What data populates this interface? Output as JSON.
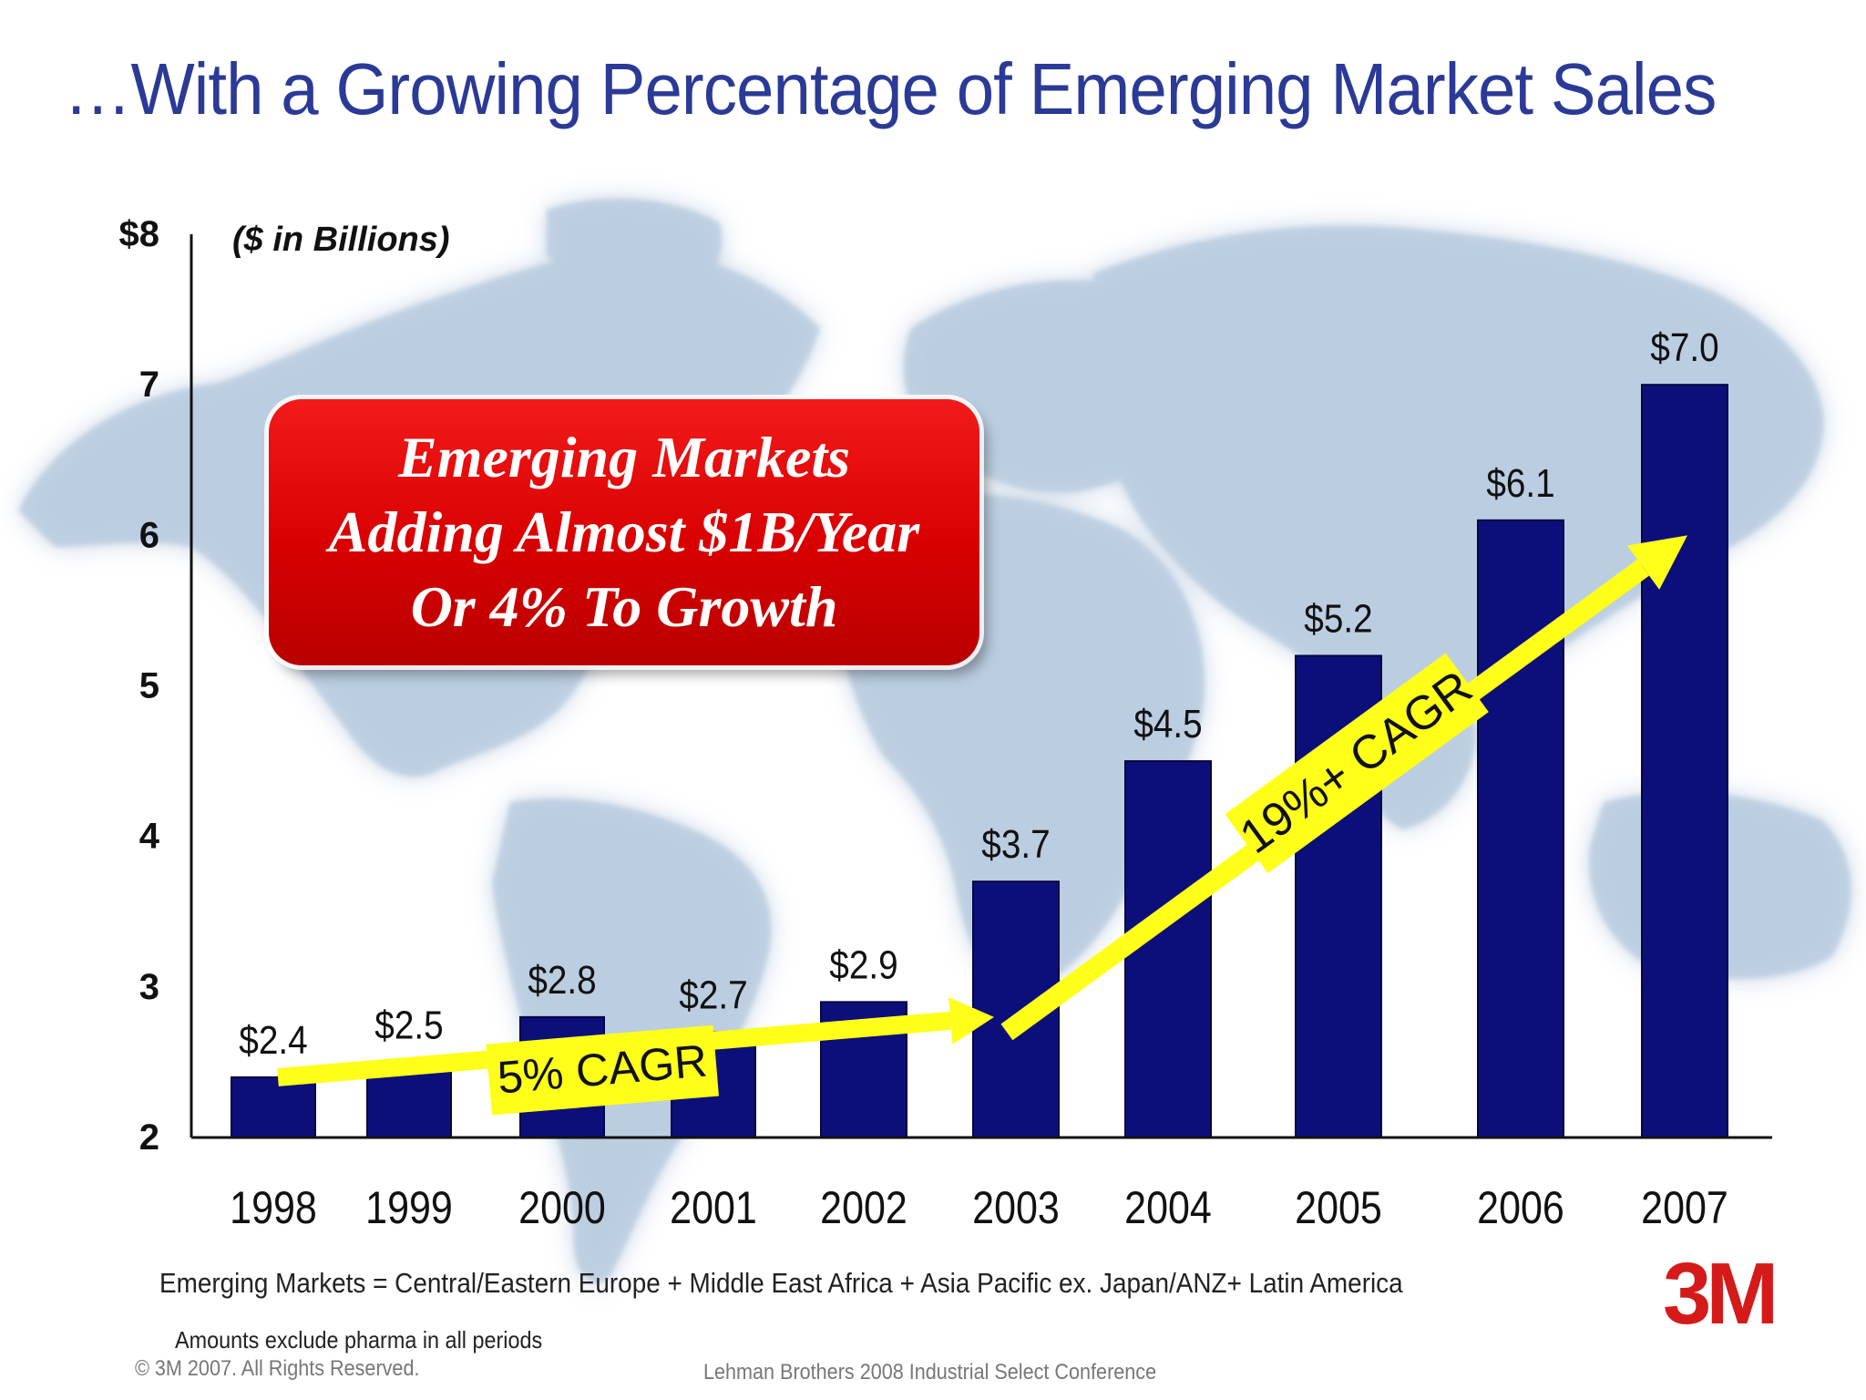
{
  "slide": {
    "title": "…With a Growing Percentage of Emerging Market Sales",
    "units_note": "($ in Billions)",
    "callout": {
      "lines": [
        "Emerging Markets",
        "Adding Almost $1B/Year",
        "Or 4% To Growth"
      ],
      "color": "#e00000"
    },
    "footnote": "Emerging Markets = Central/Eastern Europe + Middle East Africa + Asia Pacific ex. Japan/ANZ+ Latin America",
    "exclusion_note": "Amounts exclude pharma in all periods",
    "copyright": "© 3M 2007.  All Rights Reserved.",
    "conference": "Lehman Brothers 2008 Industrial Select Conference",
    "logo_text": "3M",
    "colors": {
      "title": "#2b3a96",
      "bar": "#0c0f7a",
      "arrow": "#ffff1a",
      "logo": "#d51a1a",
      "map": "#b9cce0"
    },
    "background_image": "world-map"
  },
  "chart_data": {
    "type": "bar",
    "categories": [
      "1998",
      "1999",
      "2000",
      "2001",
      "2002",
      "2003",
      "2004",
      "2005",
      "2006",
      "2007"
    ],
    "values": [
      2.4,
      2.5,
      2.8,
      2.7,
      2.9,
      3.7,
      4.5,
      5.2,
      6.1,
      7.0
    ],
    "value_labels": [
      "$2.4",
      "$2.5",
      "$2.8",
      "$2.7",
      "$2.9",
      "$3.7",
      "$4.5",
      "$5.2",
      "$6.1",
      "$7.0"
    ],
    "ylim": [
      2,
      8
    ],
    "y_ticks": [
      {
        "value": 8,
        "label": "$8"
      },
      {
        "value": 7,
        "label": "7"
      },
      {
        "value": 6,
        "label": "6"
      },
      {
        "value": 5,
        "label": "5"
      },
      {
        "value": 4,
        "label": "4"
      },
      {
        "value": 3,
        "label": "3"
      },
      {
        "value": 2,
        "label": "2"
      }
    ],
    "grid": false,
    "annotations": [
      {
        "label": "5% CAGR",
        "from": {
          "x": "1998",
          "y": 2.4
        },
        "to": {
          "x": "2003",
          "y": 2.8
        }
      },
      {
        "label": "19%+ CAGR",
        "from": {
          "x": "2003",
          "y": 2.7
        },
        "to": {
          "x": "2007",
          "y": 6.0
        }
      }
    ]
  }
}
